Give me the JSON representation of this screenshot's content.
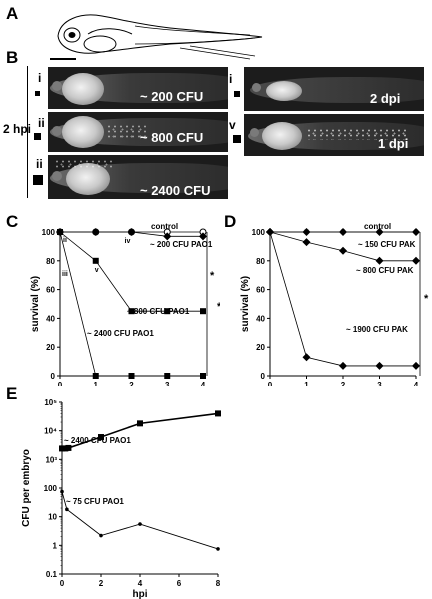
{
  "panel_letters": {
    "a": "A",
    "b": "B",
    "c": "C",
    "d": "D",
    "e": "E"
  },
  "panel_b": {
    "group_label": "2 hpi",
    "images": [
      {
        "roman": "i",
        "label": "~ 200 CFU"
      },
      {
        "roman": "ii",
        "label": "~ 800 CFU"
      },
      {
        "roman": "ii",
        "label": "~ 2400 CFU"
      },
      {
        "roman": "i",
        "label": "2 dpi"
      },
      {
        "roman": "v",
        "label": "1 dpi"
      }
    ]
  },
  "chart_data": [
    {
      "panel": "C",
      "type": "line",
      "xlabel": "dpi",
      "ylabel": "survival (%)",
      "xlim": [
        0,
        4
      ],
      "ylim": [
        0,
        100
      ],
      "x_ticks": [
        "0",
        "1",
        "2",
        "3",
        "4"
      ],
      "y_ticks": [
        "0",
        "20",
        "40",
        "60",
        "80",
        "100"
      ],
      "series": [
        {
          "name": "control",
          "marker": "circle-open",
          "x": [
            0,
            1,
            2,
            3,
            4
          ],
          "y": [
            100,
            100,
            100,
            100,
            100
          ]
        },
        {
          "name": "~ 200 CFU PAO1",
          "marker": "diamond",
          "x": [
            0,
            1,
            2,
            3,
            4
          ],
          "y": [
            100,
            100,
            100,
            97,
            97
          ]
        },
        {
          "name": "~ 800 CFU PAO1",
          "marker": "square",
          "x": [
            0,
            1,
            2,
            3,
            4
          ],
          "y": [
            100,
            80,
            45,
            45,
            45
          ]
        },
        {
          "name": "~ 2400 CFU PAO1",
          "marker": "square",
          "x": [
            0,
            1,
            2,
            3,
            4
          ],
          "y": [
            100,
            0,
            0,
            0,
            0
          ]
        }
      ],
      "point_annotations": [
        {
          "text": "ii",
          "x": 0,
          "y": 100
        },
        {
          "text": "iii",
          "x": 0,
          "y": 100
        },
        {
          "text": "iv",
          "x": 2,
          "y": 100
        },
        {
          "text": "v",
          "x": 1,
          "y": 80
        }
      ],
      "significance": [
        "*",
        "*"
      ]
    },
    {
      "panel": "D",
      "type": "line",
      "xlabel": "dpi",
      "ylabel": "survival (%)",
      "xlim": [
        0,
        4
      ],
      "ylim": [
        0,
        100
      ],
      "x_ticks": [
        "0",
        "1",
        "2",
        "3",
        "4"
      ],
      "y_ticks": [
        "0",
        "20",
        "40",
        "60",
        "80",
        "100"
      ],
      "series": [
        {
          "name": "control",
          "marker": "asterisk",
          "x": [
            0,
            1,
            2,
            3,
            4
          ],
          "y": [
            100,
            100,
            100,
            100,
            100
          ]
        },
        {
          "name": "~ 150 CFU PAK",
          "marker": "diamond",
          "x": [
            0,
            1,
            2,
            3,
            4
          ],
          "y": [
            100,
            100,
            100,
            100,
            100
          ]
        },
        {
          "name": "~ 800 CFU PAK",
          "marker": "diamond",
          "x": [
            0,
            1,
            2,
            3,
            4
          ],
          "y": [
            100,
            93,
            87,
            80,
            80
          ]
        },
        {
          "name": "~ 1900 CFU PAK",
          "marker": "diamond",
          "x": [
            0,
            1,
            2,
            3,
            4
          ],
          "y": [
            100,
            13,
            7,
            7,
            7
          ]
        }
      ],
      "significance": [
        "*"
      ]
    },
    {
      "panel": "E",
      "type": "line",
      "xlabel": "hpi",
      "ylabel": "CFU per embryo",
      "y_scale": "log",
      "xlim": [
        0,
        8
      ],
      "ylim": [
        0.1,
        100000
      ],
      "x_ticks": [
        "0",
        "2",
        "4",
        "6",
        "8"
      ],
      "y_ticks": [
        "0.1",
        "1",
        "10",
        "100",
        "10³",
        "10⁴",
        "10⁵"
      ],
      "series": [
        {
          "name": "~ 2400 CFU PAO1",
          "marker": "square",
          "x": [
            0,
            0.17,
            0.33,
            2,
            4,
            8
          ],
          "y": [
            2400,
            2400,
            2500,
            6000,
            18000,
            40000
          ]
        },
        {
          "name": "~ 75 CFU PAO1",
          "marker": "dot",
          "x": [
            0,
            0.25,
            2,
            4,
            8
          ],
          "y": [
            75,
            18,
            2.2,
            5.5,
            0.75
          ]
        }
      ]
    }
  ]
}
